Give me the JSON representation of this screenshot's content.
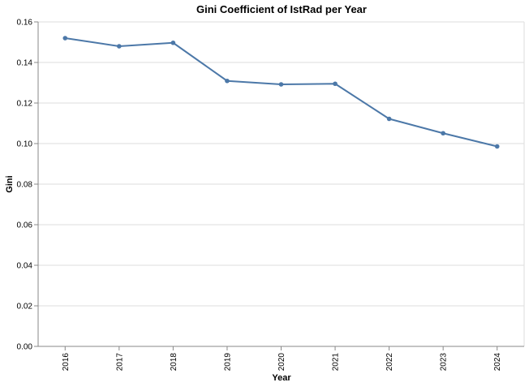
{
  "chart_data": {
    "type": "line",
    "title": "Gini Coefficient of IstRad per Year",
    "xlabel": "Year",
    "ylabel": "Gini",
    "categories": [
      "2016",
      "2017",
      "2018",
      "2019",
      "2020",
      "2021",
      "2022",
      "2023",
      "2024"
    ],
    "series": [
      {
        "values": [
          0.152,
          0.148,
          0.1497,
          0.1309,
          0.1292,
          0.1295,
          0.1122,
          0.1051,
          0.0986
        ]
      }
    ],
    "ylim": [
      0,
      0.16
    ],
    "yticks": [
      "0.00",
      "0.02",
      "0.04",
      "0.06",
      "0.08",
      "0.10",
      "0.12",
      "0.14",
      "0.16"
    ],
    "grid": true,
    "legend": "none",
    "colors": {
      "line": "#4c78a8",
      "grid": "#dddddd",
      "axis": "#888888",
      "text": "#000000"
    }
  }
}
